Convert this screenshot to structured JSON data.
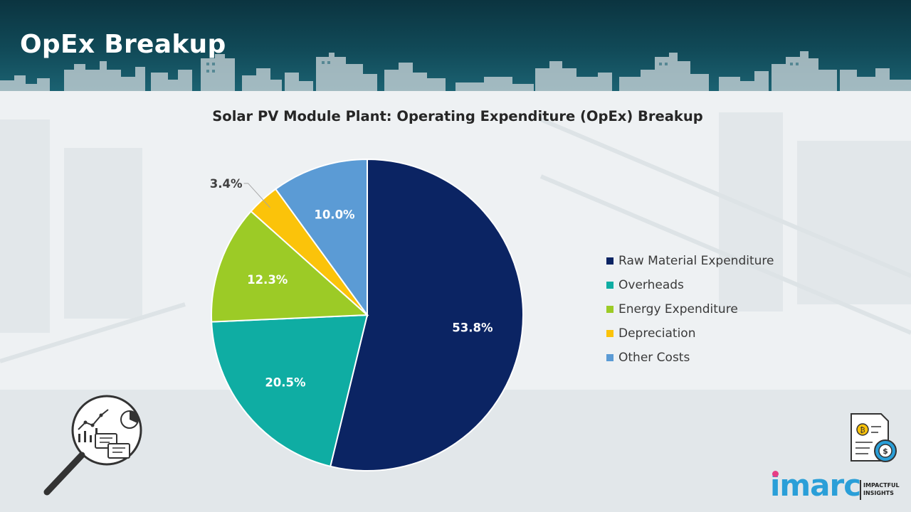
{
  "page": {
    "title": "OpEx Breakup"
  },
  "chart_data": {
    "type": "pie",
    "title": "Solar PV Module Plant: Operating Expenditure (OpEx) Breakup",
    "categories": [
      "Raw Material Expenditure",
      "Overheads",
      "Energy Expenditure",
      "Depreciation",
      "Other Costs"
    ],
    "values": [
      53.8,
      20.5,
      12.3,
      3.4,
      10.0
    ],
    "data_labels": [
      "53.8%",
      "20.5%",
      "12.3%",
      "3.4%",
      "10.0%"
    ],
    "colors": [
      "#0b2463",
      "#0fada3",
      "#9ccb26",
      "#fbc30a",
      "#5b9bd5"
    ],
    "legend_position": "right",
    "start": "12 o'clock, clockwise"
  },
  "brand": {
    "logo_text": "imarc",
    "tagline": [
      "IMPACTFUL",
      "INSIGHTS"
    ],
    "logo_color": "#2a9fd8",
    "logo_accent": "#e63d85"
  },
  "icons": {
    "analytics": "magnifier-analytics-icon",
    "cost": "cost-document-icon",
    "coin_symbol": "₿",
    "dollar_symbol": "$"
  }
}
